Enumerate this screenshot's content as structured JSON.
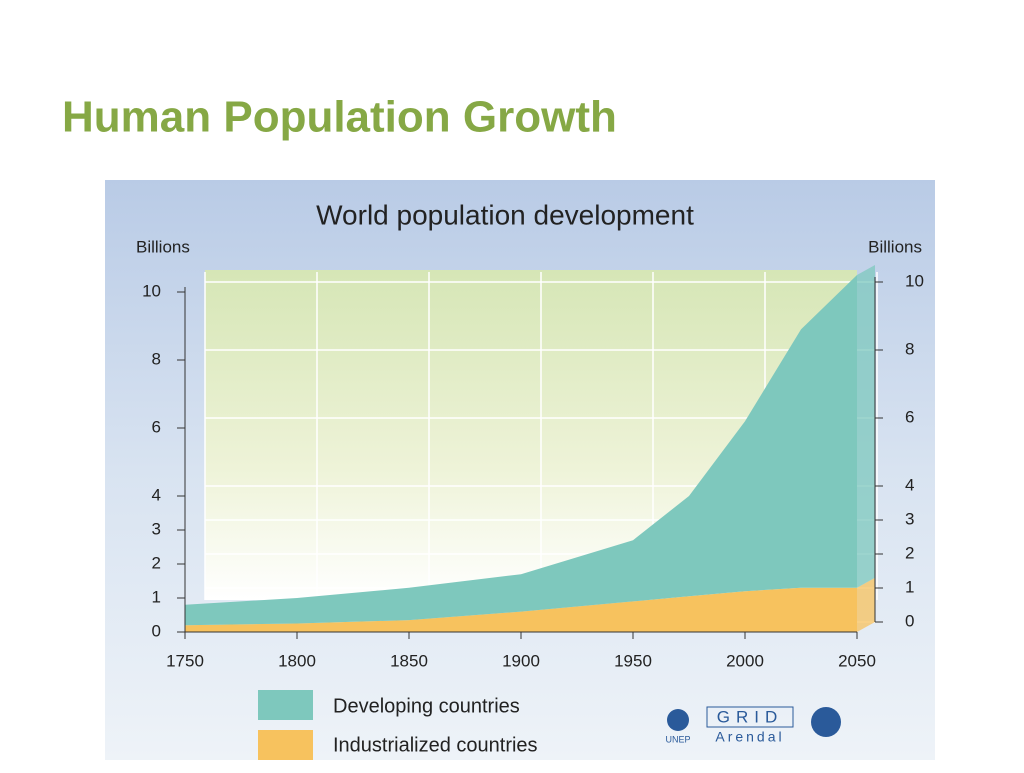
{
  "slide_title": "Human Population Growth",
  "chart_data": {
    "type": "stacked_area",
    "title": "World population development",
    "y_label": "Billions",
    "y2_label": "Billions",
    "x": [
      1750,
      1800,
      1850,
      1900,
      1950,
      1975,
      2000,
      2025,
      2050
    ],
    "xlim": [
      1750,
      2050
    ],
    "xticks": [
      1750,
      1800,
      1850,
      1900,
      1950,
      2000,
      2050
    ],
    "ylim": [
      0,
      10
    ],
    "yticks": [
      0,
      1,
      2,
      3,
      4,
      6,
      8,
      10
    ],
    "y2lim": [
      0,
      10
    ],
    "y2ticks": [
      0,
      1,
      2,
      3,
      4,
      6,
      8,
      10
    ],
    "grid": true,
    "series": [
      {
        "name": "Industrialized countries",
        "color": "#f7c25e",
        "values": [
          0.2,
          0.25,
          0.35,
          0.6,
          0.9,
          1.05,
          1.2,
          1.3,
          1.3
        ]
      },
      {
        "name": "Developing countries",
        "color": "#7ec8bd",
        "values": [
          0.6,
          0.75,
          0.95,
          1.1,
          1.8,
          2.95,
          5.0,
          7.6,
          9.2
        ]
      }
    ]
  },
  "logos": [
    "UNEP",
    "GRID",
    "Arendal"
  ]
}
